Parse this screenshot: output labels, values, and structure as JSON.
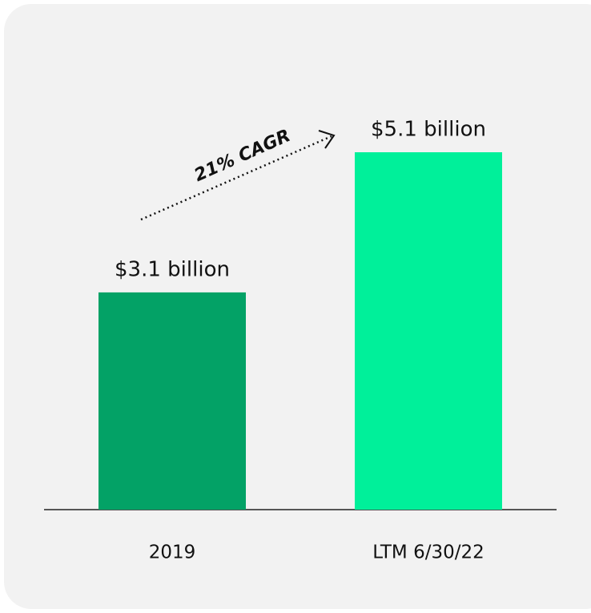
{
  "chart_data": {
    "type": "bar",
    "categories": [
      "2019",
      "LTM 6/30/22"
    ],
    "values": [
      3.1,
      5.1
    ],
    "value_labels": [
      "$3.1 billion",
      "$5.1 billion"
    ],
    "colors": [
      "#03a266",
      "#00f09a"
    ],
    "annotation": "21% CAGR"
  }
}
